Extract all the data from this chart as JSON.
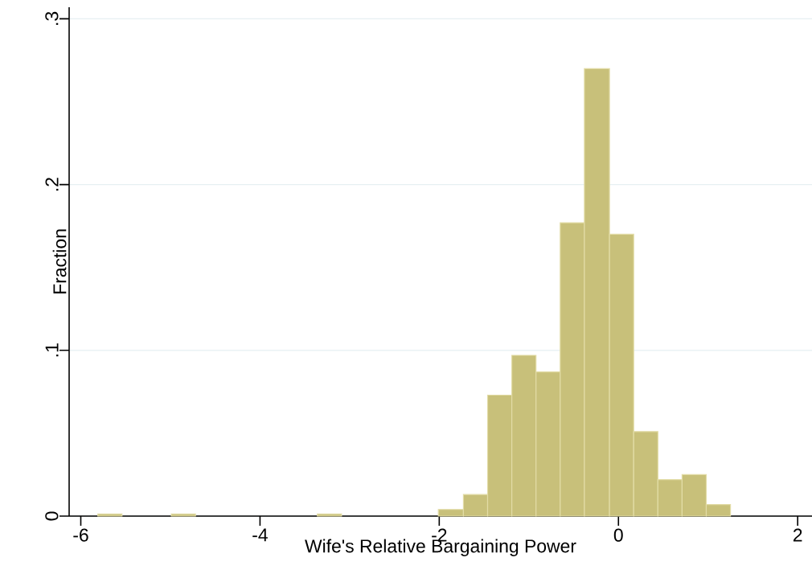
{
  "chart_data": {
    "type": "histogram",
    "xlabel": "Wife's Relative Bargaining Power",
    "ylabel": "Fraction",
    "bins": [
      -5.81,
      -5.54,
      -4.99,
      -4.72,
      -3.36,
      -3.09,
      -2.01,
      -1.73,
      -1.46,
      -1.19,
      -0.92,
      -0.65,
      -0.38,
      -0.1,
      0.17,
      0.44,
      0.71,
      0.98,
      1.25
    ],
    "values": [
      0.0013,
      0,
      0.0013,
      0,
      0.0013,
      0,
      0.004,
      0.013,
      0.073,
      0.097,
      0.087,
      0.177,
      0.27,
      0.17,
      0.051,
      0.022,
      0.025,
      0.007
    ],
    "color": "#c8c07a",
    "xlim": [
      -6.13,
      2.16
    ],
    "ylim": [
      0,
      0.307
    ],
    "xticks": [
      -6,
      -4,
      -2,
      0,
      2
    ],
    "yticks": [
      0,
      {
        "value": 0.1,
        "label": ".1"
      },
      {
        "value": 0.2,
        "label": ".2"
      },
      {
        "value": 0.3,
        "label": ".3"
      }
    ],
    "grid": "y"
  }
}
